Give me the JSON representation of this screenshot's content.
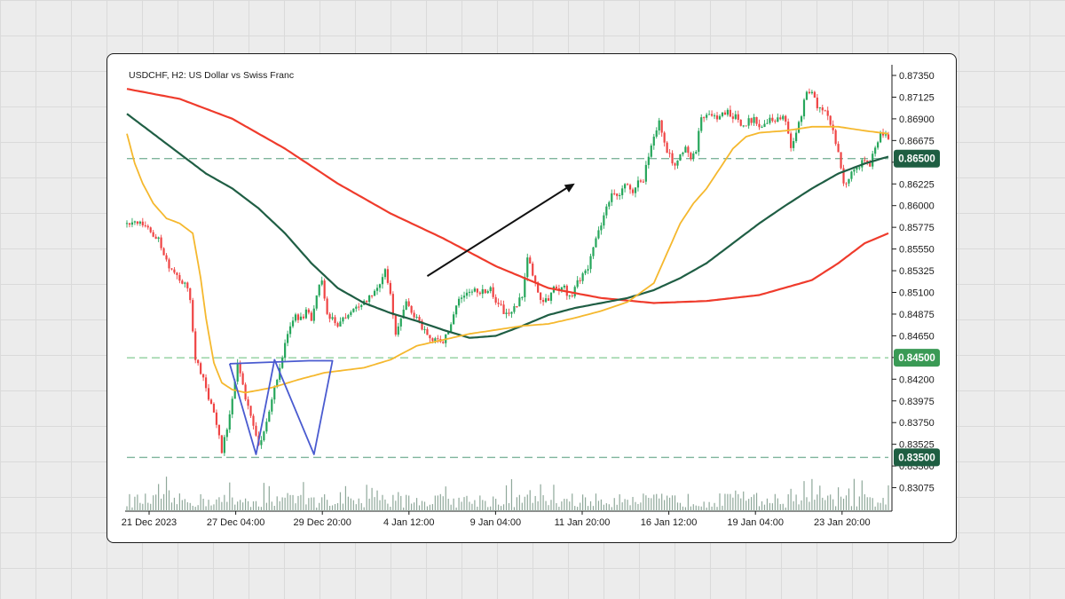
{
  "chart_data": {
    "type": "candlestick",
    "title": "USDCHF, H2: US Dollar vs Swiss Franc",
    "y_ticks": [
      "0.87350",
      "0.87125",
      "0.86900",
      "0.86675",
      "0.86450",
      "0.86225",
      "0.86000",
      "0.85775",
      "0.85550",
      "0.85325",
      "0.85100",
      "0.84875",
      "0.84650",
      "0.84425",
      "0.84200",
      "0.83975",
      "0.83750",
      "0.83525",
      "0.83300",
      "0.83075"
    ],
    "ylim": [
      0.8296,
      0.8746
    ],
    "x_ticks": [
      "21 Dec 2023",
      "27 Dec 04:00",
      "29 Dec 20:00",
      "4 Jan 12:00",
      "9 Jan 04:00",
      "11 Jan 20:00",
      "16 Jan 12:00",
      "19 Jan 04:00",
      "23 Jan 20:00"
    ],
    "levels": [
      {
        "value": 0.865,
        "label": "0.86500",
        "color": "#1e5e42"
      },
      {
        "value": 0.845,
        "label": "0.84500",
        "color": "#3a9a55"
      },
      {
        "value": 0.835,
        "label": "0.83500",
        "color": "#1e5e42"
      }
    ],
    "close_path": [
      [
        0,
        0.8585
      ],
      [
        6,
        0.8583
      ],
      [
        12,
        0.8568
      ],
      [
        16,
        0.8543
      ],
      [
        20,
        0.853
      ],
      [
        22,
        0.8523
      ],
      [
        24,
        0.851
      ],
      [
        26,
        0.8448
      ],
      [
        28,
        0.8437
      ],
      [
        31,
        0.841
      ],
      [
        34,
        0.8385
      ],
      [
        36,
        0.8355
      ],
      [
        38,
        0.838
      ],
      [
        40,
        0.8412
      ],
      [
        42,
        0.8445
      ],
      [
        44,
        0.842
      ],
      [
        46,
        0.84
      ],
      [
        48,
        0.8385
      ],
      [
        50,
        0.836
      ],
      [
        52,
        0.8375
      ],
      [
        54,
        0.8395
      ],
      [
        56,
        0.842
      ],
      [
        58,
        0.844
      ],
      [
        60,
        0.8465
      ],
      [
        62,
        0.8485
      ],
      [
        64,
        0.8492
      ],
      [
        66,
        0.8488
      ],
      [
        68,
        0.8495
      ],
      [
        70,
        0.849
      ],
      [
        72,
        0.8512
      ],
      [
        74,
        0.853
      ],
      [
        76,
        0.8495
      ],
      [
        80,
        0.8482
      ],
      [
        84,
        0.8495
      ],
      [
        88,
        0.85
      ],
      [
        92,
        0.851
      ],
      [
        96,
        0.8525
      ],
      [
        98,
        0.8538
      ],
      [
        100,
        0.8515
      ],
      [
        102,
        0.8475
      ],
      [
        104,
        0.849
      ],
      [
        106,
        0.8505
      ],
      [
        108,
        0.8495
      ],
      [
        110,
        0.849
      ],
      [
        112,
        0.848
      ],
      [
        114,
        0.8475
      ],
      [
        116,
        0.8468
      ],
      [
        118,
        0.847
      ],
      [
        120,
        0.8466
      ],
      [
        122,
        0.8475
      ],
      [
        124,
        0.8495
      ],
      [
        126,
        0.851
      ],
      [
        128,
        0.8512
      ],
      [
        130,
        0.8517
      ],
      [
        134,
        0.8515
      ],
      [
        138,
        0.8518
      ],
      [
        140,
        0.8505
      ],
      [
        142,
        0.85
      ],
      [
        144,
        0.8492
      ],
      [
        146,
        0.8495
      ],
      [
        148,
        0.8505
      ],
      [
        150,
        0.851
      ],
      [
        152,
        0.8548
      ],
      [
        154,
        0.8535
      ],
      [
        156,
        0.8515
      ],
      [
        158,
        0.8505
      ],
      [
        160,
        0.851
      ],
      [
        162,
        0.8525
      ],
      [
        164,
        0.8515
      ],
      [
        166,
        0.852
      ],
      [
        168,
        0.851
      ],
      [
        170,
        0.852
      ],
      [
        172,
        0.853
      ],
      [
        174,
        0.8535
      ],
      [
        176,
        0.855
      ],
      [
        178,
        0.857
      ],
      [
        180,
        0.8585
      ],
      [
        182,
        0.86
      ],
      [
        184,
        0.8615
      ],
      [
        186,
        0.861
      ],
      [
        188,
        0.862
      ],
      [
        190,
        0.8625
      ],
      [
        192,
        0.8615
      ],
      [
        194,
        0.8625
      ],
      [
        196,
        0.863
      ],
      [
        198,
        0.8655
      ],
      [
        200,
        0.867
      ],
      [
        202,
        0.869
      ],
      [
        204,
        0.8665
      ],
      [
        206,
        0.8652
      ],
      [
        208,
        0.8645
      ],
      [
        210,
        0.8655
      ],
      [
        212,
        0.866
      ],
      [
        214,
        0.8648
      ],
      [
        216,
        0.866
      ],
      [
        218,
        0.869
      ],
      [
        220,
        0.8695
      ],
      [
        222,
        0.8695
      ],
      [
        224,
        0.8688
      ],
      [
        226,
        0.8695
      ],
      [
        228,
        0.8698
      ],
      [
        230,
        0.869
      ],
      [
        232,
        0.8692
      ],
      [
        234,
        0.868
      ],
      [
        236,
        0.8688
      ],
      [
        238,
        0.869
      ],
      [
        240,
        0.8682
      ],
      [
        242,
        0.8688
      ],
      [
        244,
        0.869
      ],
      [
        246,
        0.8688
      ],
      [
        248,
        0.8692
      ],
      [
        250,
        0.8688
      ],
      [
        252,
        0.866
      ],
      [
        254,
        0.8675
      ],
      [
        256,
        0.8695
      ],
      [
        258,
        0.872
      ],
      [
        260,
        0.8715
      ],
      [
        262,
        0.8703
      ],
      [
        264,
        0.87
      ],
      [
        266,
        0.869
      ],
      [
        268,
        0.868
      ],
      [
        270,
        0.8655
      ],
      [
        272,
        0.8625
      ],
      [
        274,
        0.863
      ],
      [
        276,
        0.8638
      ],
      [
        278,
        0.864
      ],
      [
        280,
        0.865
      ],
      [
        282,
        0.8643
      ],
      [
        284,
        0.866
      ],
      [
        286,
        0.8678
      ],
      [
        288,
        0.8675
      ],
      [
        289,
        0.867
      ]
    ],
    "sma_fast": [
      [
        0,
        0.8675
      ],
      [
        3,
        0.8645
      ],
      [
        6,
        0.8625
      ],
      [
        10,
        0.8605
      ],
      [
        15,
        0.859
      ],
      [
        20,
        0.8585
      ],
      [
        25,
        0.8575
      ],
      [
        28,
        0.853
      ],
      [
        30,
        0.849
      ],
      [
        33,
        0.8445
      ],
      [
        36,
        0.8425
      ],
      [
        40,
        0.8418
      ],
      [
        45,
        0.8415
      ],
      [
        55,
        0.842
      ],
      [
        65,
        0.8428
      ],
      [
        75,
        0.8435
      ],
      [
        90,
        0.844
      ],
      [
        100,
        0.8448
      ],
      [
        110,
        0.8462
      ],
      [
        120,
        0.8468
      ],
      [
        130,
        0.8474
      ],
      [
        140,
        0.8478
      ],
      [
        150,
        0.8482
      ],
      [
        160,
        0.8484
      ],
      [
        170,
        0.849
      ],
      [
        180,
        0.8497
      ],
      [
        190,
        0.8506
      ],
      [
        200,
        0.8525
      ],
      [
        205,
        0.8555
      ],
      [
        210,
        0.8585
      ],
      [
        215,
        0.8605
      ],
      [
        220,
        0.862
      ],
      [
        225,
        0.864
      ],
      [
        230,
        0.866
      ],
      [
        235,
        0.8672
      ],
      [
        240,
        0.8676
      ],
      [
        250,
        0.8678
      ],
      [
        260,
        0.8682
      ],
      [
        270,
        0.8682
      ],
      [
        280,
        0.8678
      ],
      [
        289,
        0.8675
      ]
    ],
    "sma_mid": [
      [
        0,
        0.8695
      ],
      [
        10,
        0.8675
      ],
      [
        20,
        0.8655
      ],
      [
        30,
        0.8635
      ],
      [
        40,
        0.862
      ],
      [
        50,
        0.86
      ],
      [
        60,
        0.8575
      ],
      [
        70,
        0.8545
      ],
      [
        80,
        0.852
      ],
      [
        90,
        0.8505
      ],
      [
        100,
        0.8495
      ],
      [
        110,
        0.8487
      ],
      [
        120,
        0.8478
      ],
      [
        130,
        0.847
      ],
      [
        140,
        0.8472
      ],
      [
        150,
        0.8482
      ],
      [
        160,
        0.8493
      ],
      [
        170,
        0.85
      ],
      [
        180,
        0.8505
      ],
      [
        190,
        0.851
      ],
      [
        200,
        0.8518
      ],
      [
        210,
        0.853
      ],
      [
        220,
        0.8545
      ],
      [
        230,
        0.8565
      ],
      [
        240,
        0.8585
      ],
      [
        250,
        0.8603
      ],
      [
        260,
        0.862
      ],
      [
        270,
        0.8635
      ],
      [
        280,
        0.8645
      ],
      [
        289,
        0.8652
      ]
    ],
    "sma_slow": [
      [
        0,
        0.872
      ],
      [
        20,
        0.871
      ],
      [
        40,
        0.869
      ],
      [
        60,
        0.866
      ],
      [
        80,
        0.8625
      ],
      [
        100,
        0.8595
      ],
      [
        120,
        0.857
      ],
      [
        140,
        0.8542
      ],
      [
        160,
        0.852
      ],
      [
        180,
        0.851
      ],
      [
        200,
        0.8505
      ],
      [
        220,
        0.8507
      ],
      [
        240,
        0.8513
      ],
      [
        260,
        0.8528
      ],
      [
        270,
        0.8545
      ],
      [
        280,
        0.8565
      ],
      [
        289,
        0.8575
      ]
    ],
    "pattern": [
      [
        39,
        0.8444
      ],
      [
        49,
        0.8353
      ],
      [
        56,
        0.8448
      ],
      [
        71,
        0.8353
      ],
      [
        78,
        0.8447
      ],
      [
        69,
        0.8447
      ],
      [
        39,
        0.8444
      ]
    ],
    "arrow": [
      [
        114,
        0.8532
      ],
      [
        170,
        0.8625
      ]
    ]
  }
}
